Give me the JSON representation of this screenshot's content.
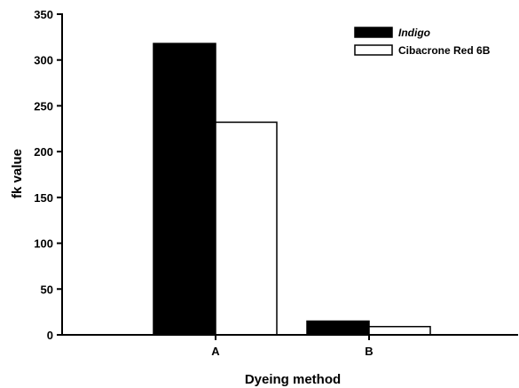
{
  "chart_data": {
    "type": "bar",
    "title": "",
    "xlabel": "Dyeing method",
    "ylabel": "fk value",
    "categories": [
      "A",
      "B"
    ],
    "ylim": [
      0,
      350
    ],
    "yticks": [
      0,
      50,
      100,
      150,
      200,
      250,
      300,
      350
    ],
    "grid": false,
    "legend_position": "top-right",
    "series": [
      {
        "name": "Indigo",
        "values": [
          318,
          15
        ],
        "color": "#000000",
        "italic": true
      },
      {
        "name": "Cibacrone Red 6B",
        "values": [
          232,
          9
        ],
        "color": "#ffffff",
        "italic": false
      }
    ]
  }
}
